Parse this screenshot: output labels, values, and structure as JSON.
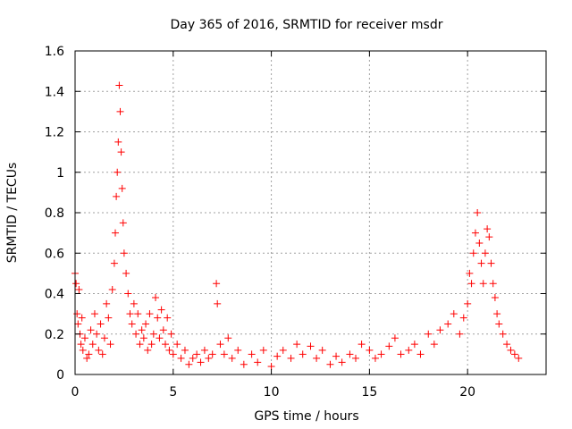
{
  "chart_data": {
    "type": "scatter",
    "title": "Day 365 of 2016, SRMTID for receiver msdr",
    "xlabel": "GPS time / hours",
    "ylabel": "SRMTID / TECUs",
    "xlim": [
      0,
      24
    ],
    "ylim": [
      0,
      1.6
    ],
    "xticks": [
      0,
      5,
      10,
      15,
      20
    ],
    "xtick_labels": [
      "0",
      "5",
      "10",
      "15",
      "20"
    ],
    "yticks": [
      0,
      0.2,
      0.4,
      0.6,
      0.8,
      1,
      1.2,
      1.4,
      1.6
    ],
    "ytick_labels": [
      "0",
      "0.2",
      "0.4",
      "0.6",
      "0.8",
      "1",
      "1.2",
      "1.4",
      "1.6"
    ],
    "grid": true,
    "marker": "+",
    "color": "#ff0000",
    "series": [
      {
        "name": "SRMTID",
        "points": [
          [
            0.0,
            0.5
          ],
          [
            0.05,
            0.45
          ],
          [
            0.1,
            0.3
          ],
          [
            0.15,
            0.25
          ],
          [
            0.2,
            0.42
          ],
          [
            0.25,
            0.2
          ],
          [
            0.3,
            0.15
          ],
          [
            0.35,
            0.28
          ],
          [
            0.4,
            0.12
          ],
          [
            0.5,
            0.18
          ],
          [
            0.6,
            0.08
          ],
          [
            0.7,
            0.1
          ],
          [
            0.8,
            0.22
          ],
          [
            0.9,
            0.15
          ],
          [
            1.0,
            0.3
          ],
          [
            1.1,
            0.2
          ],
          [
            1.2,
            0.12
          ],
          [
            1.3,
            0.25
          ],
          [
            1.4,
            0.1
          ],
          [
            1.5,
            0.18
          ],
          [
            1.6,
            0.35
          ],
          [
            1.7,
            0.28
          ],
          [
            1.8,
            0.15
          ],
          [
            1.9,
            0.42
          ],
          [
            2.0,
            0.55
          ],
          [
            2.05,
            0.7
          ],
          [
            2.1,
            0.88
          ],
          [
            2.15,
            1.0
          ],
          [
            2.2,
            1.15
          ],
          [
            2.25,
            1.43
          ],
          [
            2.3,
            1.3
          ],
          [
            2.35,
            1.1
          ],
          [
            2.4,
            0.92
          ],
          [
            2.45,
            0.75
          ],
          [
            2.5,
            0.6
          ],
          [
            2.6,
            0.5
          ],
          [
            2.7,
            0.4
          ],
          [
            2.8,
            0.3
          ],
          [
            2.9,
            0.25
          ],
          [
            3.0,
            0.35
          ],
          [
            3.1,
            0.2
          ],
          [
            3.2,
            0.3
          ],
          [
            3.3,
            0.15
          ],
          [
            3.4,
            0.22
          ],
          [
            3.5,
            0.18
          ],
          [
            3.6,
            0.25
          ],
          [
            3.7,
            0.12
          ],
          [
            3.8,
            0.3
          ],
          [
            3.9,
            0.15
          ],
          [
            4.0,
            0.2
          ],
          [
            4.1,
            0.38
          ],
          [
            4.2,
            0.28
          ],
          [
            4.3,
            0.18
          ],
          [
            4.4,
            0.32
          ],
          [
            4.5,
            0.22
          ],
          [
            4.6,
            0.15
          ],
          [
            4.7,
            0.28
          ],
          [
            4.8,
            0.12
          ],
          [
            4.9,
            0.2
          ],
          [
            5.0,
            0.1
          ],
          [
            5.2,
            0.15
          ],
          [
            5.4,
            0.08
          ],
          [
            5.6,
            0.12
          ],
          [
            5.8,
            0.05
          ],
          [
            6.0,
            0.08
          ],
          [
            6.2,
            0.1
          ],
          [
            6.4,
            0.06
          ],
          [
            6.6,
            0.12
          ],
          [
            6.8,
            0.08
          ],
          [
            7.0,
            0.1
          ],
          [
            7.2,
            0.45
          ],
          [
            7.25,
            0.35
          ],
          [
            7.4,
            0.15
          ],
          [
            7.6,
            0.1
          ],
          [
            7.8,
            0.18
          ],
          [
            8.0,
            0.08
          ],
          [
            8.3,
            0.12
          ],
          [
            8.6,
            0.05
          ],
          [
            9.0,
            0.1
          ],
          [
            9.3,
            0.06
          ],
          [
            9.6,
            0.12
          ],
          [
            10.0,
            0.04
          ],
          [
            10.3,
            0.09
          ],
          [
            10.6,
            0.12
          ],
          [
            11.0,
            0.08
          ],
          [
            11.3,
            0.15
          ],
          [
            11.6,
            0.1
          ],
          [
            12.0,
            0.14
          ],
          [
            12.3,
            0.08
          ],
          [
            12.6,
            0.12
          ],
          [
            13.0,
            0.05
          ],
          [
            13.3,
            0.09
          ],
          [
            13.6,
            0.06
          ],
          [
            14.0,
            0.1
          ],
          [
            14.3,
            0.08
          ],
          [
            14.6,
            0.15
          ],
          [
            15.0,
            0.12
          ],
          [
            15.3,
            0.08
          ],
          [
            15.6,
            0.1
          ],
          [
            16.0,
            0.14
          ],
          [
            16.3,
            0.18
          ],
          [
            16.6,
            0.1
          ],
          [
            17.0,
            0.12
          ],
          [
            17.3,
            0.15
          ],
          [
            17.6,
            0.1
          ],
          [
            18.0,
            0.2
          ],
          [
            18.3,
            0.15
          ],
          [
            18.6,
            0.22
          ],
          [
            19.0,
            0.25
          ],
          [
            19.3,
            0.3
          ],
          [
            19.6,
            0.2
          ],
          [
            19.8,
            0.28
          ],
          [
            20.0,
            0.35
          ],
          [
            20.1,
            0.5
          ],
          [
            20.2,
            0.45
          ],
          [
            20.3,
            0.6
          ],
          [
            20.4,
            0.7
          ],
          [
            20.5,
            0.8
          ],
          [
            20.6,
            0.65
          ],
          [
            20.7,
            0.55
          ],
          [
            20.8,
            0.45
          ],
          [
            20.9,
            0.6
          ],
          [
            21.0,
            0.72
          ],
          [
            21.1,
            0.68
          ],
          [
            21.2,
            0.55
          ],
          [
            21.3,
            0.45
          ],
          [
            21.4,
            0.38
          ],
          [
            21.5,
            0.3
          ],
          [
            21.6,
            0.25
          ],
          [
            21.8,
            0.2
          ],
          [
            22.0,
            0.15
          ],
          [
            22.2,
            0.12
          ],
          [
            22.4,
            0.1
          ],
          [
            22.6,
            0.08
          ]
        ]
      }
    ]
  }
}
